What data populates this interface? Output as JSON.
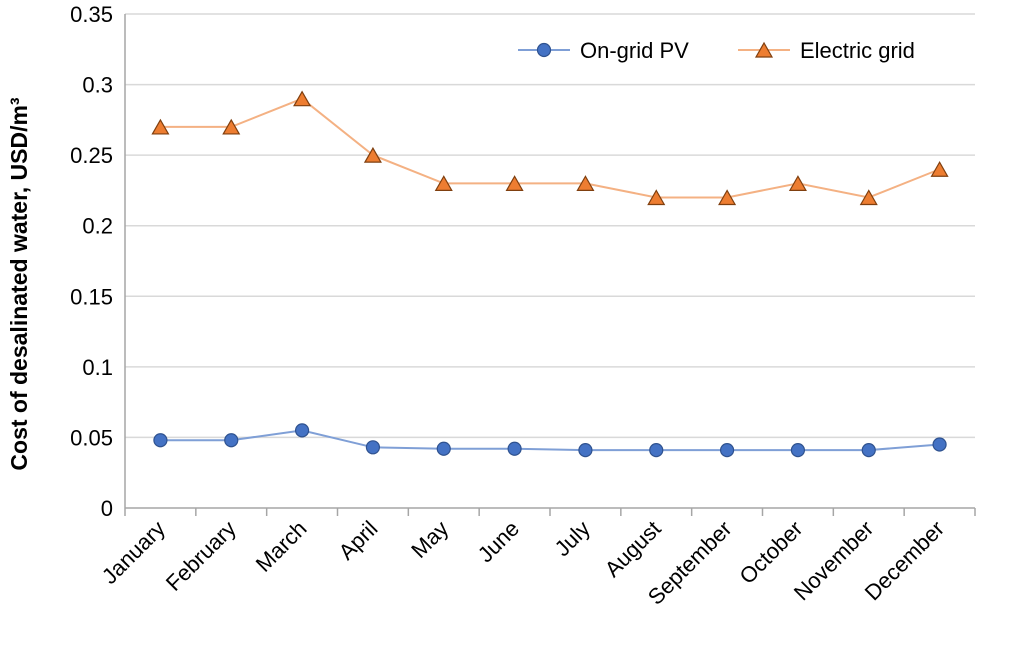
{
  "chart_data": {
    "type": "line",
    "title": "",
    "xlabel": "",
    "ylabel": "Cost of desalinated water, USD/m³",
    "categories": [
      "January",
      "February",
      "March",
      "April",
      "May",
      "June",
      "July",
      "August",
      "September",
      "October",
      "November",
      "December"
    ],
    "ylim": [
      0,
      0.35
    ],
    "yticks": [
      "0",
      "0.05",
      "0.1",
      "0.15",
      "0.2",
      "0.25",
      "0.3",
      "0.35"
    ],
    "grid": true,
    "legend_position": "top-right",
    "series": [
      {
        "name": "On-grid PV",
        "marker": "circle",
        "line_color": "#7f9fd6",
        "marker_fill": "#4472c4",
        "marker_stroke": "#2f528f",
        "values": [
          0.048,
          0.048,
          0.055,
          0.043,
          0.042,
          0.042,
          0.041,
          0.041,
          0.041,
          0.041,
          0.041,
          0.045
        ]
      },
      {
        "name": "Electric grid",
        "marker": "triangle",
        "line_color": "#f4b183",
        "marker_fill": "#ed7d31",
        "marker_stroke": "#7f3f0f",
        "values": [
          0.27,
          0.27,
          0.29,
          0.25,
          0.23,
          0.23,
          0.23,
          0.22,
          0.22,
          0.23,
          0.22,
          0.24
        ]
      }
    ]
  }
}
